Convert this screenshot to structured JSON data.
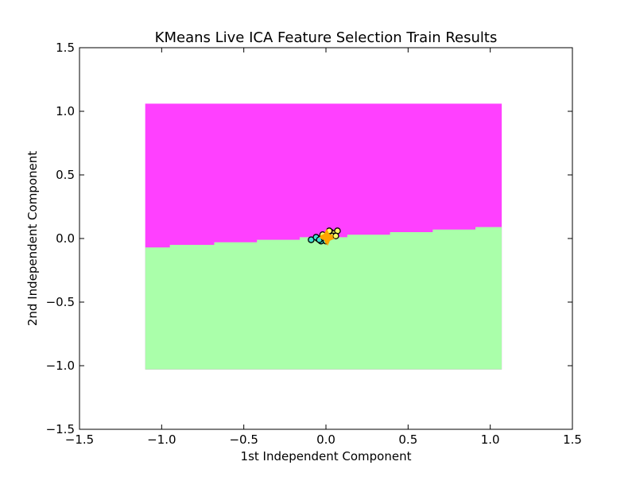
{
  "chart_data": {
    "type": "scatter",
    "title": "KMeans Live ICA Feature Selection Train Results",
    "xlabel": "1st Independent Component",
    "ylabel": "2nd Independent Component",
    "xlim": [
      -1.5,
      1.5
    ],
    "ylim": [
      -1.5,
      1.5
    ],
    "xticks": [
      -1.5,
      -1.0,
      -0.5,
      0.0,
      0.5,
      1.0,
      1.5
    ],
    "yticks": [
      -1.5,
      -1.0,
      -0.5,
      0.0,
      0.5,
      1.0,
      1.5
    ],
    "xtick_labels": [
      "−1.5",
      "−1.0",
      "−0.5",
      "0.0",
      "0.5",
      "1.0",
      "1.5"
    ],
    "ytick_labels": [
      "−1.5",
      "−1.0",
      "−0.5",
      "0.0",
      "0.5",
      "1.0",
      "1.5"
    ],
    "grid": false,
    "decision_regions": {
      "x_range": [
        -1.1,
        1.07
      ],
      "y_range": [
        -1.03,
        1.06
      ],
      "upper_color": "#ff40ff",
      "lower_color": "#aaffaa",
      "boundary_steps": [
        [
          -1.1,
          -0.07
        ],
        [
          -0.95,
          -0.05
        ],
        [
          -0.68,
          -0.03
        ],
        [
          -0.42,
          -0.01
        ],
        [
          -0.16,
          0.01
        ],
        [
          0.13,
          0.03
        ],
        [
          0.39,
          0.05
        ],
        [
          0.65,
          0.07
        ],
        [
          0.91,
          0.09
        ],
        [
          1.07,
          0.09
        ]
      ]
    },
    "series": [
      {
        "color": "#40e0d0",
        "marker": "circle",
        "points": [
          [
            -0.09,
            -0.01
          ],
          [
            -0.05,
            0.0
          ],
          [
            -0.03,
            -0.02
          ],
          [
            -0.06,
            0.01
          ],
          [
            -0.02,
            0.02
          ],
          [
            -0.04,
            -0.01
          ],
          [
            -0.01,
            0.0
          ],
          [
            0.0,
            -0.02
          ]
        ]
      },
      {
        "color": "#ffff66",
        "marker": "circle",
        "points": [
          [
            0.01,
            0.03
          ],
          [
            0.03,
            0.05
          ],
          [
            0.05,
            0.04
          ],
          [
            0.07,
            0.06
          ],
          [
            0.04,
            0.02
          ],
          [
            0.02,
            0.06
          ],
          [
            0.06,
            0.02
          ],
          [
            -0.02,
            0.03
          ]
        ]
      },
      {
        "color": "#ffa500",
        "marker": "x-star",
        "points": [
          [
            0.0,
            0.01
          ],
          [
            0.01,
            0.0
          ],
          [
            0.005,
            0.02
          ]
        ]
      }
    ]
  }
}
